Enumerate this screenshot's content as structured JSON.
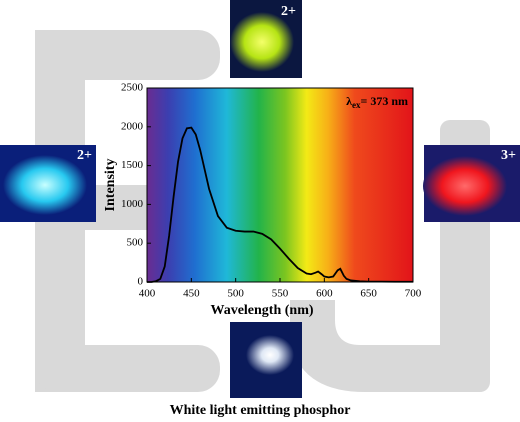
{
  "chart_data": {
    "type": "line",
    "x": [
      400,
      405,
      410,
      415,
      420,
      425,
      430,
      435,
      440,
      445,
      450,
      455,
      460,
      470,
      480,
      490,
      500,
      510,
      520,
      530,
      540,
      550,
      560,
      570,
      580,
      585,
      590,
      593,
      597,
      600,
      605,
      610,
      615,
      618,
      622,
      625,
      630,
      640,
      650,
      660,
      680,
      700
    ],
    "values": [
      0,
      0,
      10,
      40,
      200,
      600,
      1100,
      1550,
      1850,
      1980,
      1990,
      1900,
      1700,
      1200,
      850,
      700,
      660,
      650,
      650,
      620,
      550,
      430,
      300,
      180,
      110,
      100,
      120,
      135,
      100,
      70,
      60,
      70,
      150,
      170,
      80,
      40,
      20,
      10,
      5,
      5,
      3,
      3
    ],
    "color": "#000000",
    "xlim": [
      400,
      700
    ],
    "xticks": [
      400,
      450,
      500,
      550,
      600,
      650,
      700
    ],
    "ylim": [
      0,
      2500
    ],
    "yticks": [
      0,
      500,
      1000,
      1500,
      2000,
      2500
    ],
    "xlabel": "Wavelength (nm)",
    "ylabel": "Intensity",
    "annotation": {
      "symbol": "λ",
      "subscript": "ex",
      "text": "= 373 nm"
    }
  },
  "images": [
    {
      "label": "2+"
    },
    {
      "label": "2+"
    },
    {
      "label": "3+"
    }
  ],
  "caption": "White light emitting phosphor"
}
